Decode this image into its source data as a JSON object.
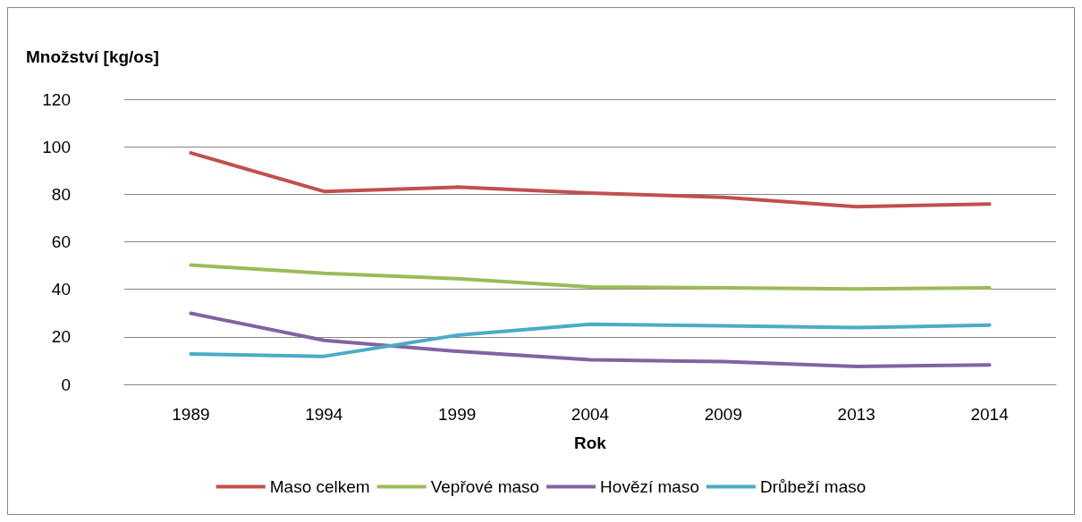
{
  "chart_data": {
    "type": "line",
    "xlabel": "Rok",
    "ylabel": "Množství [kg/os]",
    "categories": [
      "1989",
      "1994",
      "1999",
      "2004",
      "2009",
      "2013",
      "2014"
    ],
    "series": [
      {
        "name": "Maso celkem",
        "color": "#c0504d",
        "values": [
          97.4,
          81.2,
          83.0,
          80.5,
          78.7,
          74.8,
          75.9
        ]
      },
      {
        "name": "Vepřové maso",
        "color": "#9bbb59",
        "values": [
          50.2,
          46.7,
          44.5,
          41.0,
          40.6,
          40.2,
          40.6
        ]
      },
      {
        "name": "Hovězí maso",
        "color": "#8064a2",
        "values": [
          29.9,
          18.5,
          13.9,
          10.3,
          9.6,
          7.5,
          8.2
        ]
      },
      {
        "name": "Drůbeží maso",
        "color": "#4bacc6",
        "values": [
          12.8,
          11.8,
          20.7,
          25.3,
          24.6,
          23.9,
          24.9
        ]
      }
    ],
    "ylim": [
      0,
      120
    ],
    "yticks": [
      0,
      20,
      40,
      60,
      80,
      100,
      120
    ],
    "grid": "y",
    "legend": "bottom",
    "marker": "none",
    "line_style": "solid"
  }
}
